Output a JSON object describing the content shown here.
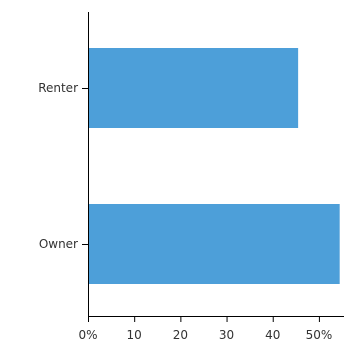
{
  "chart_data": {
    "type": "bar",
    "orientation": "horizontal",
    "categories": [
      "Renter",
      "Owner"
    ],
    "values": [
      45.5,
      54.5
    ],
    "xlim": [
      0,
      55
    ],
    "x_ticks": [
      0,
      10,
      20,
      30,
      40,
      50
    ],
    "x_tick_labels": [
      "0%",
      "10",
      "20",
      "30",
      "40",
      "50%"
    ],
    "title": "",
    "xlabel": "",
    "ylabel": "",
    "grid": false,
    "legend": "none",
    "bar_color": "#4d9fd9"
  }
}
